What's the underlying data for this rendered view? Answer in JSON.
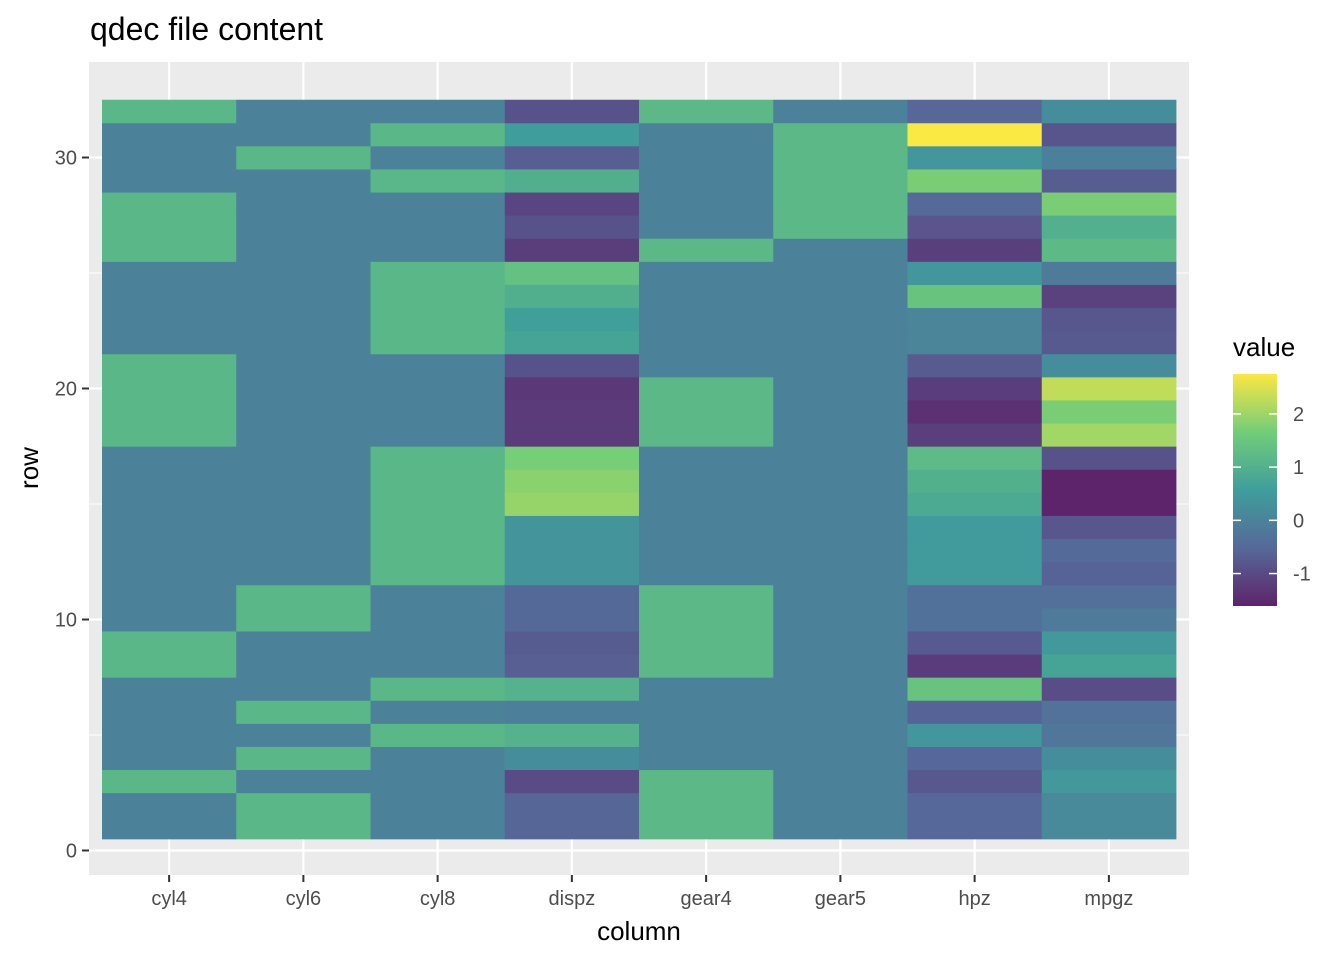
{
  "chart_data": {
    "type": "heatmap",
    "title": "qdec file content",
    "xlabel": "column",
    "ylabel": "row",
    "columns": [
      "cyl4",
      "cyl6",
      "cyl8",
      "dispz",
      "gear4",
      "gear5",
      "hpz",
      "mpgz"
    ],
    "rows": [
      1,
      2,
      3,
      4,
      5,
      6,
      7,
      8,
      9,
      10,
      11,
      12,
      13,
      14,
      15,
      16,
      17,
      18,
      19,
      20,
      21,
      22,
      23,
      24,
      25,
      26,
      27,
      28,
      29,
      30,
      31,
      32
    ],
    "values": {
      "cyl4": [
        0,
        0,
        1.14,
        0,
        0,
        0,
        0,
        1.14,
        1.14,
        0,
        0,
        0,
        0,
        0,
        0,
        0,
        0,
        1.14,
        1.14,
        1.14,
        1.14,
        0,
        0,
        0,
        0,
        1.14,
        1.14,
        1.14,
        0,
        0,
        0,
        1.14
      ],
      "cyl6": [
        1.14,
        1.14,
        0,
        1.14,
        0,
        1.14,
        0,
        0,
        0,
        1.14,
        1.14,
        0,
        0,
        0,
        0,
        0,
        0,
        0,
        0,
        0,
        0,
        0,
        0,
        0,
        0,
        0,
        0,
        0,
        0,
        1.14,
        0,
        0
      ],
      "cyl8": [
        0,
        0,
        0,
        0,
        1.14,
        0,
        1.14,
        0,
        0,
        0,
        0,
        1.14,
        1.14,
        1.14,
        1.14,
        1.14,
        1.14,
        0,
        0,
        0,
        0,
        1.14,
        1.14,
        1.14,
        1.14,
        0,
        0,
        0,
        1.14,
        0,
        1.14,
        0
      ],
      "dispz": [
        -0.57,
        -0.57,
        -0.99,
        0.22,
        1.04,
        -0.05,
        1.04,
        -0.68,
        -0.73,
        -0.51,
        -0.51,
        0.37,
        0.37,
        0.37,
        1.95,
        1.85,
        1.69,
        -1.23,
        -1.25,
        -1.29,
        -0.89,
        0.71,
        0.6,
        0.96,
        1.37,
        -1.22,
        -0.89,
        -1.09,
        0.97,
        -0.69,
        0.57,
        -0.89
      ],
      "gear4": [
        1.19,
        1.19,
        1.19,
        0,
        0,
        0,
        0,
        1.19,
        1.19,
        1.19,
        1.19,
        0,
        0,
        0,
        0,
        0,
        0,
        1.19,
        1.19,
        1.19,
        0,
        0,
        0,
        0,
        0,
        1.19,
        0,
        0,
        0,
        0,
        0,
        1.19
      ],
      "gear5": [
        0,
        0,
        0,
        0,
        0,
        0,
        0,
        0,
        0,
        0,
        0,
        0,
        0,
        0,
        0,
        0,
        0,
        0,
        0,
        0,
        0,
        0,
        0,
        0,
        0,
        0,
        1.19,
        1.19,
        1.19,
        1.19,
        1.19,
        0
      ],
      "hpz": [
        -0.54,
        -0.54,
        -0.78,
        -0.54,
        0.41,
        -0.61,
        1.43,
        -1.24,
        -0.75,
        -0.35,
        -0.35,
        0.49,
        0.49,
        0.49,
        0.86,
        1.0,
        1.22,
        -1.19,
        -1.4,
        -1.21,
        -0.74,
        0.05,
        0.05,
        1.43,
        0.41,
        -1.19,
        -0.82,
        -0.49,
        1.71,
        0.41,
        2.75,
        -0.55
      ],
      "mpgz": [
        0.15,
        0.15,
        0.45,
        0.22,
        -0.23,
        -0.33,
        -0.96,
        0.72,
        0.45,
        -0.15,
        -0.38,
        -0.61,
        -0.47,
        -0.81,
        -1.61,
        -1.61,
        -0.89,
        2.04,
        1.71,
        2.29,
        0.23,
        -0.76,
        -0.81,
        -1.13,
        -0.15,
        1.2,
        0.98,
        1.71,
        -0.71,
        -0.06,
        -0.84,
        0.22
      ]
    },
    "ylim": [
      0,
      32.5
    ],
    "y_ticks": [
      0,
      10,
      20,
      30
    ],
    "colorbar": {
      "title": "value",
      "min": -1.61,
      "max": 2.75,
      "ticks": [
        -1,
        0,
        1,
        2
      ],
      "palette": [
        "#440154",
        "#3b528b",
        "#21908d",
        "#5dc863",
        "#fde725"
      ],
      "opacity": 0.85
    },
    "panel_background": "#ebebeb",
    "grid": true,
    "legend_position": "right"
  }
}
